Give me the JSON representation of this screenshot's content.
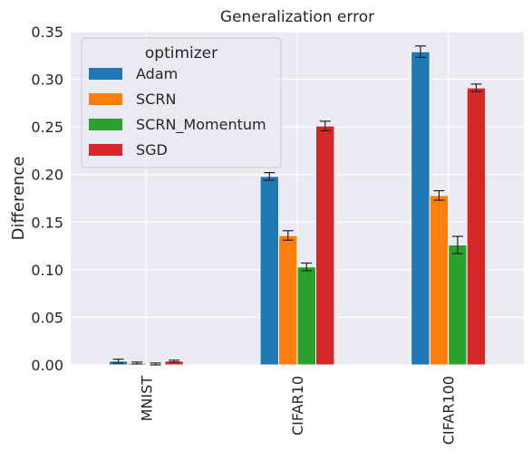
{
  "chart_data": {
    "type": "bar",
    "title": "Generalization error",
    "xlabel": "",
    "ylabel": "Difference",
    "ylim": [
      0,
      0.35
    ],
    "yticks": [
      "0.00",
      "0.05",
      "0.10",
      "0.15",
      "0.20",
      "0.25",
      "0.30",
      "0.35"
    ],
    "grid": true,
    "categories": [
      "MNIST",
      "CIFAR10",
      "CIFAR100"
    ],
    "legend": {
      "title": "optimizer",
      "placement": "top-left"
    },
    "series": [
      {
        "name": "Adam",
        "color": "#1f77b4",
        "values": [
          0.004,
          0.198,
          0.329
        ],
        "errors": [
          0.002,
          0.004,
          0.006
        ]
      },
      {
        "name": "SCRN",
        "color": "#ff7f0e",
        "values": [
          0.002,
          0.136,
          0.178
        ],
        "errors": [
          0.001,
          0.005,
          0.005
        ]
      },
      {
        "name": "SCRN_Momentum",
        "color": "#2ca02c",
        "values": [
          0.001,
          0.103,
          0.126
        ],
        "errors": [
          0.001,
          0.004,
          0.009
        ]
      },
      {
        "name": "SGD",
        "color": "#d62728",
        "values": [
          0.004,
          0.251,
          0.291
        ],
        "errors": [
          0.001,
          0.005,
          0.004
        ]
      }
    ]
  }
}
